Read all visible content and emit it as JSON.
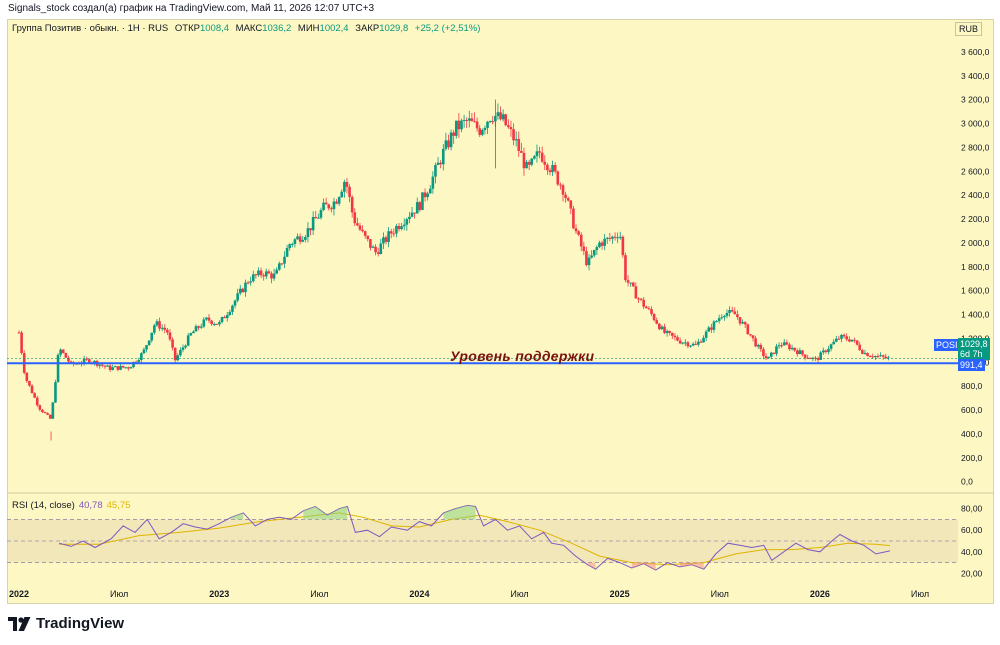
{
  "header": "Signals_stock создал(а) график на TradingView.com, Май 11, 2026 12:07 UTC+3",
  "legend": {
    "symbol": "Группа Позитив · обыкн. · 1Н · RUS",
    "open_label": "ОТКР",
    "open_value": "1008,4",
    "high_label": "МАКС",
    "high_value": "1036,2",
    "low_label": "МИН",
    "low_value": "1002,4",
    "close_label": "ЗАКР",
    "close_value": "1029,8",
    "change": "+25,2 (+2,51%)"
  },
  "currency": "RUB",
  "ticker_tag": "POSI",
  "price_tag": "1029,8",
  "countdown_tag": "6d 7h",
  "support_tag": "991,4",
  "support_label": "Уровень поддержки",
  "rsi_legend": {
    "label": "RSI (14, close)",
    "rsi_value": "40,78",
    "ma_value": "45,75"
  },
  "footer_brand": "TradingView",
  "colors": {
    "background": "#fdf7c3",
    "up": "#089981",
    "down": "#f23645",
    "support_line": "#2962ff",
    "rsi_line": "#7e57c2",
    "rsi_ma": "#e0b400"
  },
  "chart_data": [
    {
      "type": "candlestick",
      "price_axis_ticks": [
        "3 600,0",
        "3 400,0",
        "3 200,0",
        "3 000,0",
        "2 800,0",
        "2 600,0",
        "2 400,0",
        "2 200,0",
        "2 000,0",
        "1 800,0",
        "1 600,0",
        "1 400,0",
        "1 200,0",
        "1 000,0",
        "800,0",
        "600,0",
        "400,0",
        "200,0",
        "0,0"
      ],
      "ylim": [
        -70,
        3700
      ],
      "x_axis_ticks": [
        "2022",
        "Июл",
        "2023",
        "Июл",
        "2024",
        "Июл",
        "2025",
        "Июл",
        "2026",
        "Июл"
      ],
      "support_level": 991.4,
      "last_close": 1029.8,
      "close_series": [
        {
          "t": 2022.0,
          "v": 1250
        },
        {
          "t": 2022.03,
          "v": 880
        },
        {
          "t": 2022.1,
          "v": 620
        },
        {
          "t": 2022.16,
          "v": 520
        },
        {
          "t": 2022.2,
          "v": 1120
        },
        {
          "t": 2022.26,
          "v": 980
        },
        {
          "t": 2022.35,
          "v": 1020
        },
        {
          "t": 2022.45,
          "v": 950
        },
        {
          "t": 2022.55,
          "v": 960
        },
        {
          "t": 2022.62,
          "v": 1080
        },
        {
          "t": 2022.68,
          "v": 1330
        },
        {
          "t": 2022.74,
          "v": 1260
        },
        {
          "t": 2022.78,
          "v": 1020
        },
        {
          "t": 2022.86,
          "v": 1240
        },
        {
          "t": 2022.94,
          "v": 1360
        },
        {
          "t": 2023.0,
          "v": 1320
        },
        {
          "t": 2023.08,
          "v": 1520
        },
        {
          "t": 2023.15,
          "v": 1700
        },
        {
          "t": 2023.22,
          "v": 1750
        },
        {
          "t": 2023.28,
          "v": 1720
        },
        {
          "t": 2023.35,
          "v": 1990
        },
        {
          "t": 2023.44,
          "v": 2100
        },
        {
          "t": 2023.52,
          "v": 2290
        },
        {
          "t": 2023.58,
          "v": 2350
        },
        {
          "t": 2023.63,
          "v": 2540
        },
        {
          "t": 2023.67,
          "v": 2210
        },
        {
          "t": 2023.72,
          "v": 2060
        },
        {
          "t": 2023.78,
          "v": 1920
        },
        {
          "t": 2023.86,
          "v": 2090
        },
        {
          "t": 2023.94,
          "v": 2230
        },
        {
          "t": 2024.0,
          "v": 2320
        },
        {
          "t": 2024.06,
          "v": 2520
        },
        {
          "t": 2024.12,
          "v": 2760
        },
        {
          "t": 2024.18,
          "v": 2960
        },
        {
          "t": 2024.24,
          "v": 3020
        },
        {
          "t": 2024.3,
          "v": 2950
        },
        {
          "t": 2024.36,
          "v": 3080
        },
        {
          "t": 2024.42,
          "v": 3020
        },
        {
          "t": 2024.48,
          "v": 2850
        },
        {
          "t": 2024.54,
          "v": 2600
        },
        {
          "t": 2024.6,
          "v": 2760
        },
        {
          "t": 2024.66,
          "v": 2620
        },
        {
          "t": 2024.72,
          "v": 2450
        },
        {
          "t": 2024.78,
          "v": 2100
        },
        {
          "t": 2024.84,
          "v": 1820
        },
        {
          "t": 2024.9,
          "v": 2000
        },
        {
          "t": 2024.96,
          "v": 2040
        },
        {
          "t": 2025.0,
          "v": 2100
        },
        {
          "t": 2025.03,
          "v": 1700
        },
        {
          "t": 2025.1,
          "v": 1520
        },
        {
          "t": 2025.16,
          "v": 1400
        },
        {
          "t": 2025.22,
          "v": 1250
        },
        {
          "t": 2025.3,
          "v": 1180
        },
        {
          "t": 2025.38,
          "v": 1140
        },
        {
          "t": 2025.46,
          "v": 1300
        },
        {
          "t": 2025.52,
          "v": 1420
        },
        {
          "t": 2025.58,
          "v": 1400
        },
        {
          "t": 2025.64,
          "v": 1260
        },
        {
          "t": 2025.7,
          "v": 1100
        },
        {
          "t": 2025.74,
          "v": 1020
        },
        {
          "t": 2025.8,
          "v": 1160
        },
        {
          "t": 2025.86,
          "v": 1120
        },
        {
          "t": 2025.92,
          "v": 1060
        },
        {
          "t": 2025.98,
          "v": 1020
        },
        {
          "t": 2026.04,
          "v": 1120
        },
        {
          "t": 2026.1,
          "v": 1210
        },
        {
          "t": 2026.16,
          "v": 1190
        },
        {
          "t": 2026.22,
          "v": 1080
        },
        {
          "t": 2026.28,
          "v": 1050
        },
        {
          "t": 2026.35,
          "v": 1029.8
        }
      ],
      "extremes": [
        {
          "label": "2022 low",
          "t": 2022.16,
          "v": 420
        },
        {
          "label": "2024 high",
          "t": 2024.38,
          "v": 3200
        }
      ]
    },
    {
      "type": "line",
      "title": "RSI (14, close)",
      "y_axis_ticks": [
        "80,00",
        "60,00",
        "40,00",
        "20,00"
      ],
      "ylim": [
        12,
        88
      ],
      "bands": [
        30,
        50,
        70
      ],
      "rsi_series": [
        {
          "t": 2022.2,
          "v": 48
        },
        {
          "t": 2022.26,
          "v": 45
        },
        {
          "t": 2022.32,
          "v": 50
        },
        {
          "t": 2022.38,
          "v": 44
        },
        {
          "t": 2022.46,
          "v": 52
        },
        {
          "t": 2022.52,
          "v": 64
        },
        {
          "t": 2022.58,
          "v": 58
        },
        {
          "t": 2022.64,
          "v": 70
        },
        {
          "t": 2022.7,
          "v": 52
        },
        {
          "t": 2022.76,
          "v": 58
        },
        {
          "t": 2022.82,
          "v": 66
        },
        {
          "t": 2022.88,
          "v": 63
        },
        {
          "t": 2022.94,
          "v": 61
        },
        {
          "t": 2023.0,
          "v": 66
        },
        {
          "t": 2023.06,
          "v": 72
        },
        {
          "t": 2023.12,
          "v": 76
        },
        {
          "t": 2023.18,
          "v": 64
        },
        {
          "t": 2023.24,
          "v": 70
        },
        {
          "t": 2023.3,
          "v": 72
        },
        {
          "t": 2023.36,
          "v": 70
        },
        {
          "t": 2023.42,
          "v": 78
        },
        {
          "t": 2023.48,
          "v": 82
        },
        {
          "t": 2023.54,
          "v": 74
        },
        {
          "t": 2023.6,
          "v": 80
        },
        {
          "t": 2023.64,
          "v": 82
        },
        {
          "t": 2023.68,
          "v": 58
        },
        {
          "t": 2023.74,
          "v": 60
        },
        {
          "t": 2023.8,
          "v": 54
        },
        {
          "t": 2023.86,
          "v": 63
        },
        {
          "t": 2023.94,
          "v": 60
        },
        {
          "t": 2024.0,
          "v": 68
        },
        {
          "t": 2024.06,
          "v": 64
        },
        {
          "t": 2024.12,
          "v": 76
        },
        {
          "t": 2024.18,
          "v": 80
        },
        {
          "t": 2024.24,
          "v": 83
        },
        {
          "t": 2024.28,
          "v": 82
        },
        {
          "t": 2024.32,
          "v": 64
        },
        {
          "t": 2024.38,
          "v": 70
        },
        {
          "t": 2024.44,
          "v": 60
        },
        {
          "t": 2024.5,
          "v": 64
        },
        {
          "t": 2024.56,
          "v": 52
        },
        {
          "t": 2024.62,
          "v": 58
        },
        {
          "t": 2024.66,
          "v": 48
        },
        {
          "t": 2024.72,
          "v": 46
        },
        {
          "t": 2024.78,
          "v": 36
        },
        {
          "t": 2024.84,
          "v": 28
        },
        {
          "t": 2024.88,
          "v": 24
        },
        {
          "t": 2024.94,
          "v": 34
        },
        {
          "t": 2025.0,
          "v": 30
        },
        {
          "t": 2025.06,
          "v": 25
        },
        {
          "t": 2025.12,
          "v": 29
        },
        {
          "t": 2025.18,
          "v": 23
        },
        {
          "t": 2025.24,
          "v": 30
        },
        {
          "t": 2025.3,
          "v": 26
        },
        {
          "t": 2025.36,
          "v": 28
        },
        {
          "t": 2025.42,
          "v": 24
        },
        {
          "t": 2025.48,
          "v": 38
        },
        {
          "t": 2025.54,
          "v": 48
        },
        {
          "t": 2025.6,
          "v": 46
        },
        {
          "t": 2025.66,
          "v": 44
        },
        {
          "t": 2025.72,
          "v": 46
        },
        {
          "t": 2025.76,
          "v": 32
        },
        {
          "t": 2025.82,
          "v": 40
        },
        {
          "t": 2025.88,
          "v": 48
        },
        {
          "t": 2025.94,
          "v": 42
        },
        {
          "t": 2026.0,
          "v": 40
        },
        {
          "t": 2026.06,
          "v": 50
        },
        {
          "t": 2026.1,
          "v": 56
        },
        {
          "t": 2026.16,
          "v": 50
        },
        {
          "t": 2026.22,
          "v": 46
        },
        {
          "t": 2026.28,
          "v": 38
        },
        {
          "t": 2026.35,
          "v": 40.78
        }
      ],
      "ma_series": [
        {
          "t": 2022.2,
          "v": 47
        },
        {
          "t": 2022.4,
          "v": 47
        },
        {
          "t": 2022.6,
          "v": 55
        },
        {
          "t": 2022.8,
          "v": 58
        },
        {
          "t": 2023.0,
          "v": 62
        },
        {
          "t": 2023.2,
          "v": 68
        },
        {
          "t": 2023.4,
          "v": 72
        },
        {
          "t": 2023.6,
          "v": 76
        },
        {
          "t": 2023.72,
          "v": 72
        },
        {
          "t": 2023.86,
          "v": 64
        },
        {
          "t": 2024.0,
          "v": 63
        },
        {
          "t": 2024.16,
          "v": 70
        },
        {
          "t": 2024.3,
          "v": 74
        },
        {
          "t": 2024.44,
          "v": 68
        },
        {
          "t": 2024.6,
          "v": 60
        },
        {
          "t": 2024.76,
          "v": 48
        },
        {
          "t": 2024.9,
          "v": 36
        },
        {
          "t": 2025.06,
          "v": 30
        },
        {
          "t": 2025.24,
          "v": 28
        },
        {
          "t": 2025.42,
          "v": 30
        },
        {
          "t": 2025.58,
          "v": 38
        },
        {
          "t": 2025.72,
          "v": 42
        },
        {
          "t": 2025.86,
          "v": 42
        },
        {
          "t": 2026.0,
          "v": 44
        },
        {
          "t": 2026.14,
          "v": 48
        },
        {
          "t": 2026.28,
          "v": 47
        },
        {
          "t": 2026.35,
          "v": 45.75
        }
      ]
    }
  ]
}
